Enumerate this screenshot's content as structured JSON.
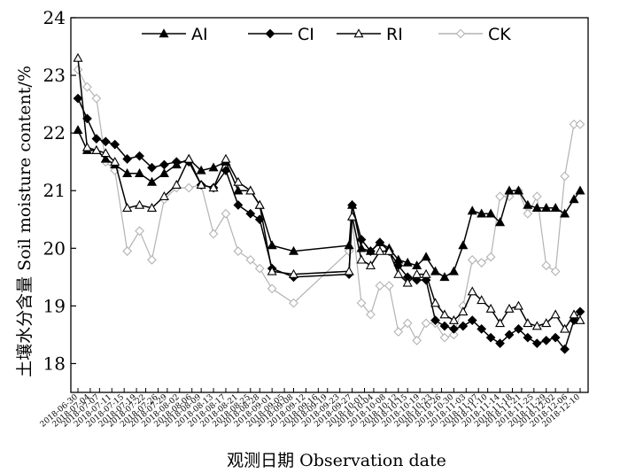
{
  "chart_data": {
    "type": "line",
    "xlabel": "观测日期 Observation date",
    "ylabel": "土壤水分含量 Soil moisture content/%",
    "ylim": [
      17.5,
      24
    ],
    "yticks": [
      18,
      19,
      20,
      21,
      22,
      23,
      24
    ],
    "grid": false,
    "legend_position": "top",
    "xtick_labels": [
      "2018-06-30",
      "2018-07-04",
      "2018-07-07",
      "2018-07-11",
      "2018-07-15",
      "2018-07-19",
      "2018-07-22",
      "2018-07-26",
      "2018-07-29",
      "2018-08-02",
      "2018-08-06",
      "2018-08-09",
      "2018-08-13",
      "2018-08-17",
      "2018-08-21",
      "2018-08-25",
      "2018-08-28",
      "2018-09-01",
      "2018-09-05",
      "2018-09-08",
      "2018-09-12",
      "2018-09-16",
      "2018-09-19",
      "2018-09-23",
      "2018-09-27",
      "2018-10-01",
      "2018-10-04",
      "2018-10-08",
      "2018-10-12",
      "2018-10-15",
      "2018-10-19",
      "2018-10-23",
      "2018-10-26",
      "2018-10-30",
      "2018-11-03",
      "2018-11-07",
      "2018-11-10",
      "2018-11-14",
      "2018-11-18",
      "2018-11-21",
      "2018-11-25",
      "2018-11-29",
      "2018-12-02",
      "2018-12-06",
      "2018-12-10"
    ],
    "series": [
      {
        "name": "AI",
        "marker": "filled-triangle",
        "color": "#000000",
        "points": [
          [
            "2018-06-30",
            22.05
          ],
          [
            "2018-07-03",
            21.7
          ],
          [
            "2018-07-06",
            21.7
          ],
          [
            "2018-07-09",
            21.55
          ],
          [
            "2018-07-12",
            21.45
          ],
          [
            "2018-07-16",
            21.3
          ],
          [
            "2018-07-20",
            21.3
          ],
          [
            "2018-07-24",
            21.15
          ],
          [
            "2018-07-28",
            21.3
          ],
          [
            "2018-08-01",
            21.45
          ],
          [
            "2018-08-05",
            21.55
          ],
          [
            "2018-08-09",
            21.35
          ],
          [
            "2018-08-13",
            21.4
          ],
          [
            "2018-08-17",
            21.5
          ],
          [
            "2018-08-21",
            21.0
          ],
          [
            "2018-08-25",
            21.0
          ],
          [
            "2018-08-28",
            20.75
          ],
          [
            "2018-09-01",
            20.05
          ],
          [
            "2018-09-08",
            19.95
          ],
          [
            "2018-09-26",
            20.05
          ],
          [
            "2018-09-27",
            20.75
          ],
          [
            "2018-09-30",
            20.0
          ],
          [
            "2018-10-03",
            19.95
          ],
          [
            "2018-10-06",
            20.1
          ],
          [
            "2018-10-09",
            20.0
          ],
          [
            "2018-10-12",
            19.8
          ],
          [
            "2018-10-15",
            19.75
          ],
          [
            "2018-10-18",
            19.7
          ],
          [
            "2018-10-21",
            19.85
          ],
          [
            "2018-10-24",
            19.6
          ],
          [
            "2018-10-27",
            19.5
          ],
          [
            "2018-10-30",
            19.6
          ],
          [
            "2018-11-02",
            20.05
          ],
          [
            "2018-11-05",
            20.65
          ],
          [
            "2018-11-08",
            20.6
          ],
          [
            "2018-11-11",
            20.6
          ],
          [
            "2018-11-14",
            20.45
          ],
          [
            "2018-11-17",
            21.0
          ],
          [
            "2018-11-20",
            21.0
          ],
          [
            "2018-11-23",
            20.75
          ],
          [
            "2018-11-26",
            20.7
          ],
          [
            "2018-11-29",
            20.7
          ],
          [
            "2018-12-02",
            20.7
          ],
          [
            "2018-12-05",
            20.6
          ],
          [
            "2018-12-08",
            20.85
          ],
          [
            "2018-12-10",
            21.0
          ]
        ]
      },
      {
        "name": "CI",
        "marker": "filled-diamond",
        "color": "#000000",
        "points": [
          [
            "2018-06-30",
            22.6
          ],
          [
            "2018-07-03",
            22.25
          ],
          [
            "2018-07-06",
            21.9
          ],
          [
            "2018-07-09",
            21.85
          ],
          [
            "2018-07-12",
            21.8
          ],
          [
            "2018-07-16",
            21.55
          ],
          [
            "2018-07-20",
            21.6
          ],
          [
            "2018-07-24",
            21.4
          ],
          [
            "2018-07-28",
            21.45
          ],
          [
            "2018-08-01",
            21.5
          ],
          [
            "2018-08-05",
            21.5
          ],
          [
            "2018-08-09",
            21.1
          ],
          [
            "2018-08-13",
            21.05
          ],
          [
            "2018-08-17",
            21.35
          ],
          [
            "2018-08-21",
            20.75
          ],
          [
            "2018-08-25",
            20.6
          ],
          [
            "2018-08-28",
            20.5
          ],
          [
            "2018-09-01",
            19.65
          ],
          [
            "2018-09-08",
            19.5
          ],
          [
            "2018-09-26",
            19.55
          ],
          [
            "2018-09-27",
            20.75
          ],
          [
            "2018-09-30",
            20.15
          ],
          [
            "2018-10-03",
            19.95
          ],
          [
            "2018-10-06",
            20.1
          ],
          [
            "2018-10-09",
            19.95
          ],
          [
            "2018-10-12",
            19.7
          ],
          [
            "2018-10-15",
            19.5
          ],
          [
            "2018-10-18",
            19.45
          ],
          [
            "2018-10-21",
            19.45
          ],
          [
            "2018-10-24",
            18.75
          ],
          [
            "2018-10-27",
            18.65
          ],
          [
            "2018-10-30",
            18.6
          ],
          [
            "2018-11-02",
            18.65
          ],
          [
            "2018-11-05",
            18.75
          ],
          [
            "2018-11-08",
            18.6
          ],
          [
            "2018-11-11",
            18.45
          ],
          [
            "2018-11-14",
            18.35
          ],
          [
            "2018-11-17",
            18.5
          ],
          [
            "2018-11-20",
            18.6
          ],
          [
            "2018-11-23",
            18.45
          ],
          [
            "2018-11-26",
            18.35
          ],
          [
            "2018-11-29",
            18.4
          ],
          [
            "2018-12-02",
            18.45
          ],
          [
            "2018-12-05",
            18.25
          ],
          [
            "2018-12-08",
            18.75
          ],
          [
            "2018-12-10",
            18.9
          ]
        ]
      },
      {
        "name": "RI",
        "marker": "open-triangle",
        "color": "#000000",
        "points": [
          [
            "2018-06-30",
            23.3
          ],
          [
            "2018-07-03",
            21.75
          ],
          [
            "2018-07-06",
            21.7
          ],
          [
            "2018-07-09",
            21.65
          ],
          [
            "2018-07-12",
            21.5
          ],
          [
            "2018-07-16",
            20.7
          ],
          [
            "2018-07-20",
            20.75
          ],
          [
            "2018-07-24",
            20.7
          ],
          [
            "2018-07-28",
            20.9
          ],
          [
            "2018-08-01",
            21.1
          ],
          [
            "2018-08-05",
            21.55
          ],
          [
            "2018-08-09",
            21.1
          ],
          [
            "2018-08-13",
            21.05
          ],
          [
            "2018-08-17",
            21.55
          ],
          [
            "2018-08-21",
            21.15
          ],
          [
            "2018-08-25",
            21.0
          ],
          [
            "2018-08-28",
            20.75
          ],
          [
            "2018-09-01",
            19.6
          ],
          [
            "2018-09-08",
            19.55
          ],
          [
            "2018-09-26",
            19.6
          ],
          [
            "2018-09-27",
            20.55
          ],
          [
            "2018-09-30",
            19.8
          ],
          [
            "2018-10-03",
            19.7
          ],
          [
            "2018-10-06",
            19.95
          ],
          [
            "2018-10-09",
            19.95
          ],
          [
            "2018-10-12",
            19.55
          ],
          [
            "2018-10-15",
            19.4
          ],
          [
            "2018-10-18",
            19.55
          ],
          [
            "2018-10-21",
            19.55
          ],
          [
            "2018-10-24",
            19.05
          ],
          [
            "2018-10-27",
            18.85
          ],
          [
            "2018-10-30",
            18.75
          ],
          [
            "2018-11-02",
            18.9
          ],
          [
            "2018-11-05",
            19.25
          ],
          [
            "2018-11-08",
            19.1
          ],
          [
            "2018-11-11",
            18.95
          ],
          [
            "2018-11-14",
            18.7
          ],
          [
            "2018-11-17",
            18.95
          ],
          [
            "2018-11-20",
            19.0
          ],
          [
            "2018-11-23",
            18.7
          ],
          [
            "2018-11-26",
            18.65
          ],
          [
            "2018-11-29",
            18.7
          ],
          [
            "2018-12-02",
            18.85
          ],
          [
            "2018-12-05",
            18.6
          ],
          [
            "2018-12-08",
            18.85
          ],
          [
            "2018-12-10",
            18.75
          ]
        ]
      },
      {
        "name": "CK",
        "marker": "open-diamond",
        "color": "#b3b3b3",
        "points": [
          [
            "2018-06-30",
            23.1
          ],
          [
            "2018-07-03",
            22.8
          ],
          [
            "2018-07-06",
            22.6
          ],
          [
            "2018-07-09",
            21.5
          ],
          [
            "2018-07-12",
            21.35
          ],
          [
            "2018-07-16",
            19.95
          ],
          [
            "2018-07-20",
            20.3
          ],
          [
            "2018-07-24",
            19.8
          ],
          [
            "2018-07-28",
            20.85
          ],
          [
            "2018-08-01",
            21.05
          ],
          [
            "2018-08-05",
            21.05
          ],
          [
            "2018-08-09",
            21.1
          ],
          [
            "2018-08-13",
            20.25
          ],
          [
            "2018-08-17",
            20.6
          ],
          [
            "2018-08-21",
            19.95
          ],
          [
            "2018-08-25",
            19.8
          ],
          [
            "2018-08-28",
            19.65
          ],
          [
            "2018-09-01",
            19.3
          ],
          [
            "2018-09-08",
            19.05
          ],
          [
            "2018-09-26",
            19.95
          ],
          [
            "2018-09-27",
            20.5
          ],
          [
            "2018-09-30",
            19.05
          ],
          [
            "2018-10-03",
            18.85
          ],
          [
            "2018-10-06",
            19.35
          ],
          [
            "2018-10-09",
            19.35
          ],
          [
            "2018-10-12",
            18.55
          ],
          [
            "2018-10-15",
            18.7
          ],
          [
            "2018-10-18",
            18.4
          ],
          [
            "2018-10-21",
            18.7
          ],
          [
            "2018-10-24",
            18.7
          ],
          [
            "2018-10-27",
            18.45
          ],
          [
            "2018-10-30",
            18.5
          ],
          [
            "2018-11-02",
            19.0
          ],
          [
            "2018-11-05",
            19.8
          ],
          [
            "2018-11-08",
            19.75
          ],
          [
            "2018-11-11",
            19.85
          ],
          [
            "2018-11-14",
            20.9
          ],
          [
            "2018-11-17",
            20.9
          ],
          [
            "2018-11-20",
            21.0
          ],
          [
            "2018-11-23",
            20.6
          ],
          [
            "2018-11-26",
            20.9
          ],
          [
            "2018-11-29",
            19.7
          ],
          [
            "2018-12-02",
            19.6
          ],
          [
            "2018-12-05",
            21.25
          ],
          [
            "2018-12-08",
            22.15
          ],
          [
            "2018-12-10",
            22.15
          ]
        ]
      }
    ]
  }
}
